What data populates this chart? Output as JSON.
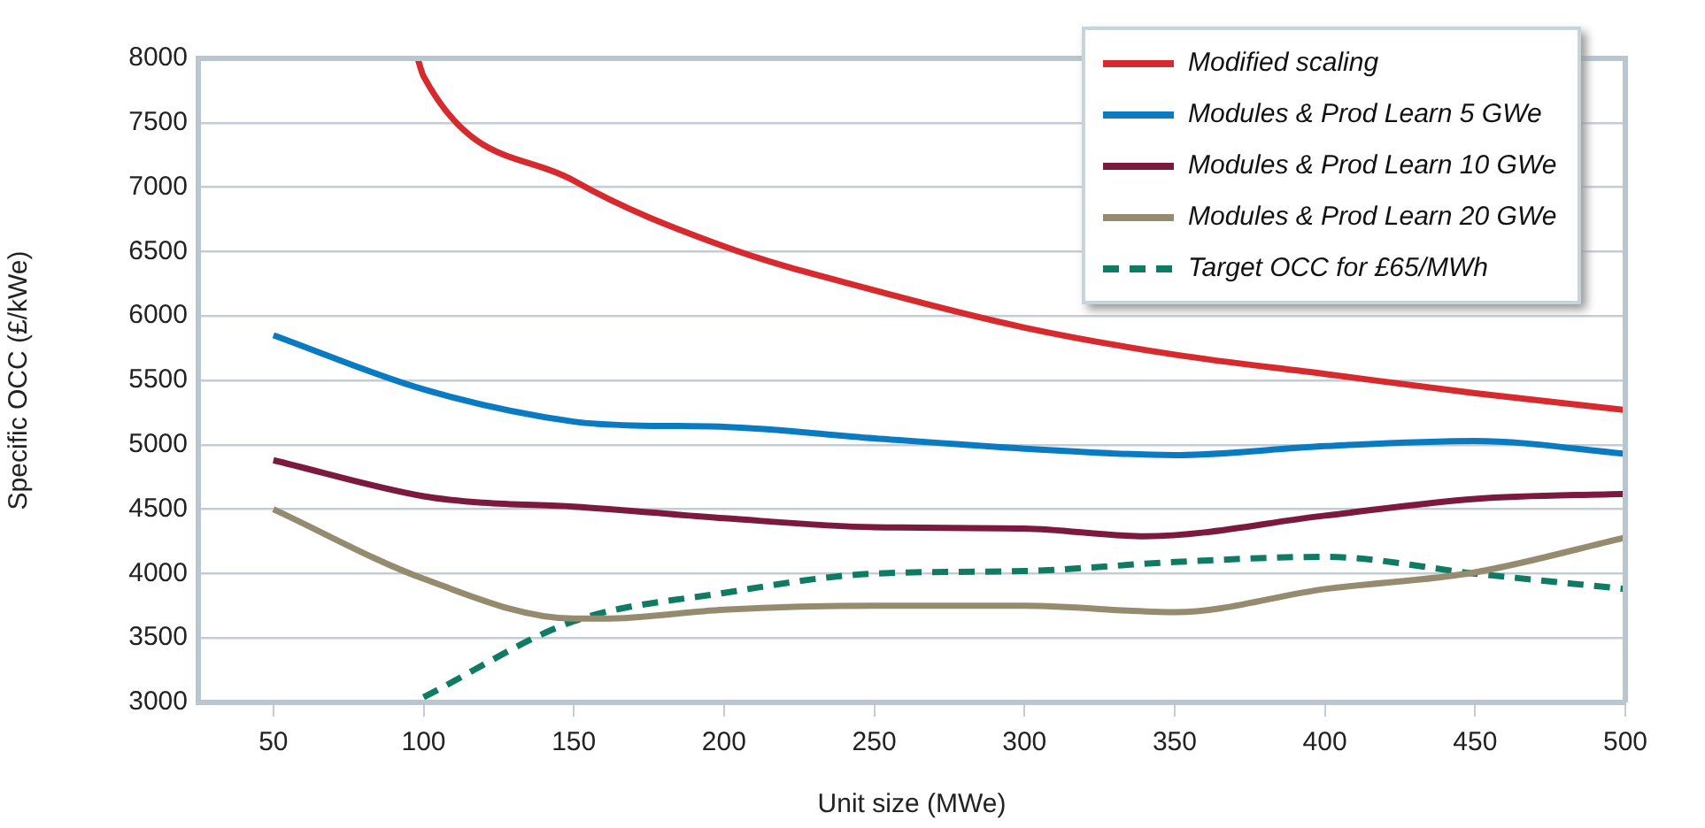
{
  "chart_data": {
    "type": "line",
    "xlabel": "Unit size (MWe)",
    "ylabel": "Specific OCC (£/kWe)",
    "xlim": [
      25,
      500
    ],
    "xticks": [
      50,
      100,
      150,
      200,
      250,
      300,
      350,
      400,
      450,
      500
    ],
    "ylim": [
      3000,
      8000
    ],
    "yticks": [
      3000,
      3500,
      4000,
      4500,
      5000,
      5500,
      6000,
      6500,
      7000,
      7500,
      8000
    ],
    "grid": "y",
    "legend": "top right",
    "marker": "none",
    "series": [
      {
        "name": "Modified scaling",
        "color": "#d62a2e",
        "line_style": "solid",
        "x": [
          98,
          100,
          150,
          200,
          250,
          300,
          350,
          400,
          450,
          500
        ],
        "values": [
          8000,
          7860,
          7050,
          6540,
          6200,
          5910,
          5700,
          5550,
          5400,
          5270
        ]
      },
      {
        "name": "Modules & Prod Learn 5 GWe",
        "color": "#0a7bc1",
        "line_style": "solid",
        "x": [
          50,
          100,
          150,
          170,
          200,
          250,
          300,
          350,
          400,
          450,
          500
        ],
        "values": [
          5850,
          5430,
          5180,
          5150,
          5140,
          5050,
          4970,
          4920,
          4990,
          5030,
          4930
        ]
      },
      {
        "name": "Modules & Prod Learn 10 GWe",
        "color": "#7b1a3e",
        "line_style": "solid",
        "x": [
          50,
          100,
          120,
          150,
          200,
          250,
          300,
          340,
          400,
          450,
          500
        ],
        "values": [
          4880,
          4600,
          4550,
          4520,
          4430,
          4360,
          4350,
          4290,
          4450,
          4580,
          4620
        ]
      },
      {
        "name": "Modules & Prod Learn 20 GWe",
        "color": "#958b6f",
        "line_style": "solid",
        "x": [
          50,
          100,
          150,
          160,
          200,
          250,
          300,
          350,
          400,
          450,
          500
        ],
        "values": [
          4500,
          3960,
          3650,
          3650,
          3720,
          3750,
          3750,
          3700,
          3880,
          4010,
          4280
        ]
      },
      {
        "name": "Target OCC for £65/MWh",
        "color": "#0f7b63",
        "line_style": "dashed",
        "x": [
          100,
          150,
          200,
          250,
          300,
          350,
          400,
          450,
          500
        ],
        "values": [
          3040,
          3630,
          3850,
          4000,
          4020,
          4090,
          4130,
          4000,
          3880
        ]
      }
    ]
  }
}
